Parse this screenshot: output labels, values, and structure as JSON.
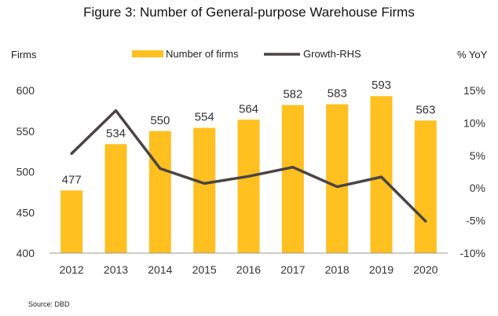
{
  "title": "Figure 3: Number of General-purpose Warehouse Firms",
  "source": "Source:  DBD",
  "chart_data": {
    "type": "bar",
    "categories": [
      "2012",
      "2013",
      "2014",
      "2015",
      "2016",
      "2017",
      "2018",
      "2019",
      "2020"
    ],
    "series": [
      {
        "name": "Number of firms",
        "type": "bar",
        "axis": "left",
        "values": [
          477,
          534,
          550,
          554,
          564,
          582,
          583,
          593,
          563
        ],
        "color": "#FFC020"
      },
      {
        "name": "Growth-RHS",
        "type": "line",
        "axis": "right",
        "values": [
          5.3,
          11.9,
          3.0,
          0.7,
          1.8,
          3.2,
          0.2,
          1.7,
          -5.1
        ],
        "color": "#4A4444"
      }
    ],
    "ylabel_left": "Firms",
    "ylabel_right": "% YoY",
    "ylim_left": [
      400,
      600
    ],
    "ylim_right": [
      -10,
      15
    ],
    "yticks_left": [
      400,
      450,
      500,
      550,
      600
    ],
    "yticks_right": [
      "-10%",
      "-5%",
      "0%",
      "5%",
      "10%",
      "15%"
    ],
    "yticks_right_values": [
      -10,
      -5,
      0,
      5,
      10,
      15
    ],
    "data_labels": [
      "477",
      "534",
      "550",
      "554",
      "564",
      "582",
      "583",
      "593",
      "563"
    ],
    "legend_position": "top",
    "grid": false
  }
}
